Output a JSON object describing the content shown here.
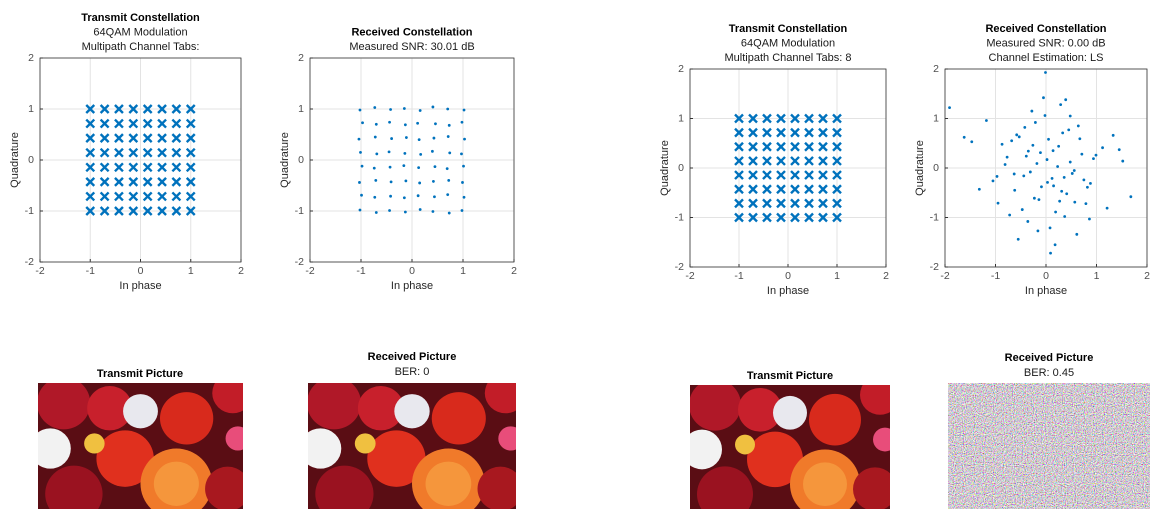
{
  "chart_data": [
    {
      "type": "scatter",
      "title": "Transmit Constellation",
      "subtitle": [
        "64QAM Modulation",
        "Multipath Channel Tabs:"
      ],
      "x_label": "In phase",
      "y_label": "Quadrature",
      "xlim": [
        -2,
        2
      ],
      "ylim": [
        -2,
        2
      ],
      "xticks": [
        -2,
        -1,
        0,
        1,
        2
      ],
      "yticks": [
        -2,
        -1,
        0,
        1,
        2
      ],
      "grid": true,
      "marker": "x",
      "color": "#0072bd",
      "x": [
        -1,
        -0.714,
        -0.429,
        -0.143,
        0.143,
        0.429,
        0.714,
        1,
        -1,
        -0.714,
        -0.429,
        -0.143,
        0.143,
        0.429,
        0.714,
        1,
        -1,
        -0.714,
        -0.429,
        -0.143,
        0.143,
        0.429,
        0.714,
        1,
        -1,
        -0.714,
        -0.429,
        -0.143,
        0.143,
        0.429,
        0.714,
        1,
        -1,
        -0.714,
        -0.429,
        -0.143,
        0.143,
        0.429,
        0.714,
        1,
        -1,
        -0.714,
        -0.429,
        -0.143,
        0.143,
        0.429,
        0.714,
        1,
        -1,
        -0.714,
        -0.429,
        -0.143,
        0.143,
        0.429,
        0.714,
        1,
        -1,
        -0.714,
        -0.429,
        -0.143,
        0.143,
        0.429,
        0.714,
        1
      ],
      "y": [
        -1,
        -1,
        -1,
        -1,
        -1,
        -1,
        -1,
        -1,
        -0.714,
        -0.714,
        -0.714,
        -0.714,
        -0.714,
        -0.714,
        -0.714,
        -0.714,
        -0.429,
        -0.429,
        -0.429,
        -0.429,
        -0.429,
        -0.429,
        -0.429,
        -0.429,
        -0.143,
        -0.143,
        -0.143,
        -0.143,
        -0.143,
        -0.143,
        -0.143,
        -0.143,
        0.143,
        0.143,
        0.143,
        0.143,
        0.143,
        0.143,
        0.143,
        0.143,
        0.429,
        0.429,
        0.429,
        0.429,
        0.429,
        0.429,
        0.429,
        0.429,
        0.714,
        0.714,
        0.714,
        0.714,
        0.714,
        0.714,
        0.714,
        0.714,
        1,
        1,
        1,
        1,
        1,
        1,
        1,
        1
      ]
    },
    {
      "type": "scatter",
      "title": "Received Constellation",
      "subtitle": [
        "Measured SNR: 30.01 dB"
      ],
      "x_label": "In phase",
      "y_label": "Quadrature",
      "xlim": [
        -2,
        2
      ],
      "ylim": [
        -2,
        2
      ],
      "xticks": [
        -2,
        -1,
        0,
        1,
        2
      ],
      "yticks": [
        -2,
        -1,
        0,
        1,
        2
      ],
      "grid": true,
      "marker": "dot",
      "color": "#0072bd",
      "x": [
        -1.02,
        -0.7,
        -0.44,
        -0.13,
        0.16,
        0.41,
        0.73,
        0.98,
        -0.99,
        -0.73,
        -0.42,
        -0.15,
        0.12,
        0.44,
        0.7,
        1.02,
        -1.03,
        -0.71,
        -0.41,
        -0.12,
        0.15,
        0.42,
        0.72,
        0.99,
        -0.98,
        -0.74,
        -0.43,
        -0.16,
        0.13,
        0.45,
        0.69,
        1.01,
        -1.01,
        -0.69,
        -0.45,
        -0.14,
        0.17,
        0.4,
        0.74,
        0.97,
        -1.04,
        -0.72,
        -0.4,
        -0.11,
        0.14,
        0.43,
        0.71,
        1.03,
        -0.97,
        -0.7,
        -0.44,
        -0.13,
        0.11,
        0.46,
        0.73,
        0.98,
        -1.02,
        -0.73,
        -0.42,
        -0.15,
        0.16,
        0.41,
        0.7,
        1.02
      ],
      "y": [
        -0.98,
        -1.03,
        -0.99,
        -1.02,
        -0.97,
        -1.01,
        -1.04,
        -0.99,
        -0.69,
        -0.73,
        -0.71,
        -0.74,
        -0.7,
        -0.72,
        -0.68,
        -0.73,
        -0.44,
        -0.4,
        -0.43,
        -0.41,
        -0.45,
        -0.42,
        -0.4,
        -0.44,
        -0.12,
        -0.16,
        -0.14,
        -0.11,
        -0.15,
        -0.13,
        -0.17,
        -0.12,
        0.15,
        0.12,
        0.16,
        0.13,
        0.11,
        0.17,
        0.14,
        0.12,
        0.41,
        0.45,
        0.42,
        0.44,
        0.4,
        0.43,
        0.46,
        0.41,
        0.73,
        0.7,
        0.74,
        0.69,
        0.72,
        0.71,
        0.68,
        0.74,
        0.98,
        1.03,
        0.99,
        1.01,
        0.97,
        1.04,
        1.0,
        0.98
      ]
    },
    {
      "type": "scatter",
      "title": "Transmit Constellation",
      "subtitle": [
        "64QAM Modulation",
        "Multipath Channel Tabs: 8"
      ],
      "x_label": "In phase",
      "y_label": "Quadrature",
      "xlim": [
        -2,
        2
      ],
      "ylim": [
        -2,
        2
      ],
      "xticks": [
        -2,
        -1,
        0,
        1,
        2
      ],
      "yticks": [
        -2,
        -1,
        0,
        1,
        2
      ],
      "grid": true,
      "marker": "x",
      "color": "#0072bd",
      "x": [
        -1,
        -0.714,
        -0.429,
        -0.143,
        0.143,
        0.429,
        0.714,
        1,
        -1,
        -0.714,
        -0.429,
        -0.143,
        0.143,
        0.429,
        0.714,
        1,
        -1,
        -0.714,
        -0.429,
        -0.143,
        0.143,
        0.429,
        0.714,
        1,
        -1,
        -0.714,
        -0.429,
        -0.143,
        0.143,
        0.429,
        0.714,
        1,
        -1,
        -0.714,
        -0.429,
        -0.143,
        0.143,
        0.429,
        0.714,
        1,
        -1,
        -0.714,
        -0.429,
        -0.143,
        0.143,
        0.429,
        0.714,
        1,
        -1,
        -0.714,
        -0.429,
        -0.143,
        0.143,
        0.429,
        0.714,
        1,
        -1,
        -0.714,
        -0.429,
        -0.143,
        0.143,
        0.429,
        0.714,
        1
      ],
      "y": [
        -1,
        -1,
        -1,
        -1,
        -1,
        -1,
        -1,
        -1,
        -0.714,
        -0.714,
        -0.714,
        -0.714,
        -0.714,
        -0.714,
        -0.714,
        -0.714,
        -0.429,
        -0.429,
        -0.429,
        -0.429,
        -0.429,
        -0.429,
        -0.429,
        -0.429,
        -0.143,
        -0.143,
        -0.143,
        -0.143,
        -0.143,
        -0.143,
        -0.143,
        -0.143,
        0.143,
        0.143,
        0.143,
        0.143,
        0.143,
        0.143,
        0.143,
        0.143,
        0.429,
        0.429,
        0.429,
        0.429,
        0.429,
        0.429,
        0.429,
        0.429,
        0.714,
        0.714,
        0.714,
        0.714,
        0.714,
        0.714,
        0.714,
        0.714,
        1,
        1,
        1,
        1,
        1,
        1,
        1,
        1
      ]
    },
    {
      "type": "scatter",
      "title": "Received Constellation",
      "subtitle": [
        "Measured SNR: 0.00 dB",
        "Channel Estimation: LS"
      ],
      "x_label": "In phase",
      "y_label": "Quadrature",
      "xlim": [
        -2,
        2
      ],
      "ylim": [
        -2,
        2
      ],
      "xticks": [
        -2,
        -1,
        0,
        1,
        2
      ],
      "yticks": [
        -2,
        -1,
        0,
        1,
        2
      ],
      "grid": true,
      "marker": "dot",
      "color": "#0072bd",
      "x": [
        0.12,
        -0.35,
        0.48,
        -0.62,
        0.05,
        0.27,
        -0.18,
        0.71,
        -0.44,
        0.33,
        -0.09,
        0.56,
        -0.77,
        0.19,
        -0.26,
        0.88,
        -0.53,
        0.02,
        0.41,
        -0.31,
        1.12,
        -1.05,
        0.64,
        -0.14,
        0.23,
        -0.68,
        0.37,
        -0.02,
        0.79,
        -0.39,
        1.45,
        -1.32,
        0.08,
        -0.21,
        0.52,
        -0.58,
        0.15,
        0.94,
        -0.87,
        0.29,
        -0.47,
        0.61,
        -0.11,
        0.36,
        -1.62,
        1.68,
        -0.72,
        0.45,
        -0.05,
        0.18,
        -1.91,
        1.52,
        0.82,
        -0.95,
        0.03,
        -0.28,
        0.67,
        -0.36,
        0.25,
        -0.63,
        1.21,
        -1.18,
        0.48,
        -0.16,
        0.09,
        0.99,
        -0.81,
        0.31,
        -0.42,
        0.57,
        0.75,
        -0.01,
        -0.55,
        1.33,
        -1.47,
        0.39,
        -0.23,
        0.14,
        -0.97,
        0.86
      ],
      "y": [
        -0.21,
        0.34,
        0.12,
        -0.45,
        0.58,
        -0.67,
        0.09,
        0.28,
        -0.16,
        0.71,
        -0.38,
        -0.05,
        0.22,
        -0.89,
        0.46,
        -0.31,
        0.63,
        0.17,
        -0.52,
        -0.08,
        0.41,
        -0.26,
        0.85,
        -0.64,
        0.03,
        0.55,
        -0.98,
        1.06,
        -0.72,
        0.24,
        0.37,
        -0.43,
        -1.21,
        0.92,
        -0.11,
        0.67,
        -0.36,
        0.19,
        0.48,
        1.28,
        -0.84,
        -1.34,
        0.31,
        -0.19,
        0.62,
        -0.58,
        -0.95,
        0.77,
        1.42,
        -1.55,
        1.22,
        0.14,
        -0.39,
        -0.71,
        -0.29,
        1.15,
        0.59,
        -1.08,
        0.44,
        -0.12,
        -0.81,
        0.96,
        1.05,
        -1.27,
        -1.72,
        0.26,
        0.07,
        -0.47,
        0.82,
        -0.69,
        -0.24,
        1.93,
        -1.44,
        0.66,
        0.53,
        1.38,
        -0.61,
        0.35,
        -0.17,
        -1.03
      ]
    }
  ],
  "pictures": [
    {
      "title": "Transmit Picture"
    },
    {
      "title": "Received Picture",
      "subtitle": "BER: 0"
    },
    {
      "title": "Transmit Picture"
    },
    {
      "title": "Received Picture",
      "subtitle": "BER: 0.45"
    }
  ]
}
